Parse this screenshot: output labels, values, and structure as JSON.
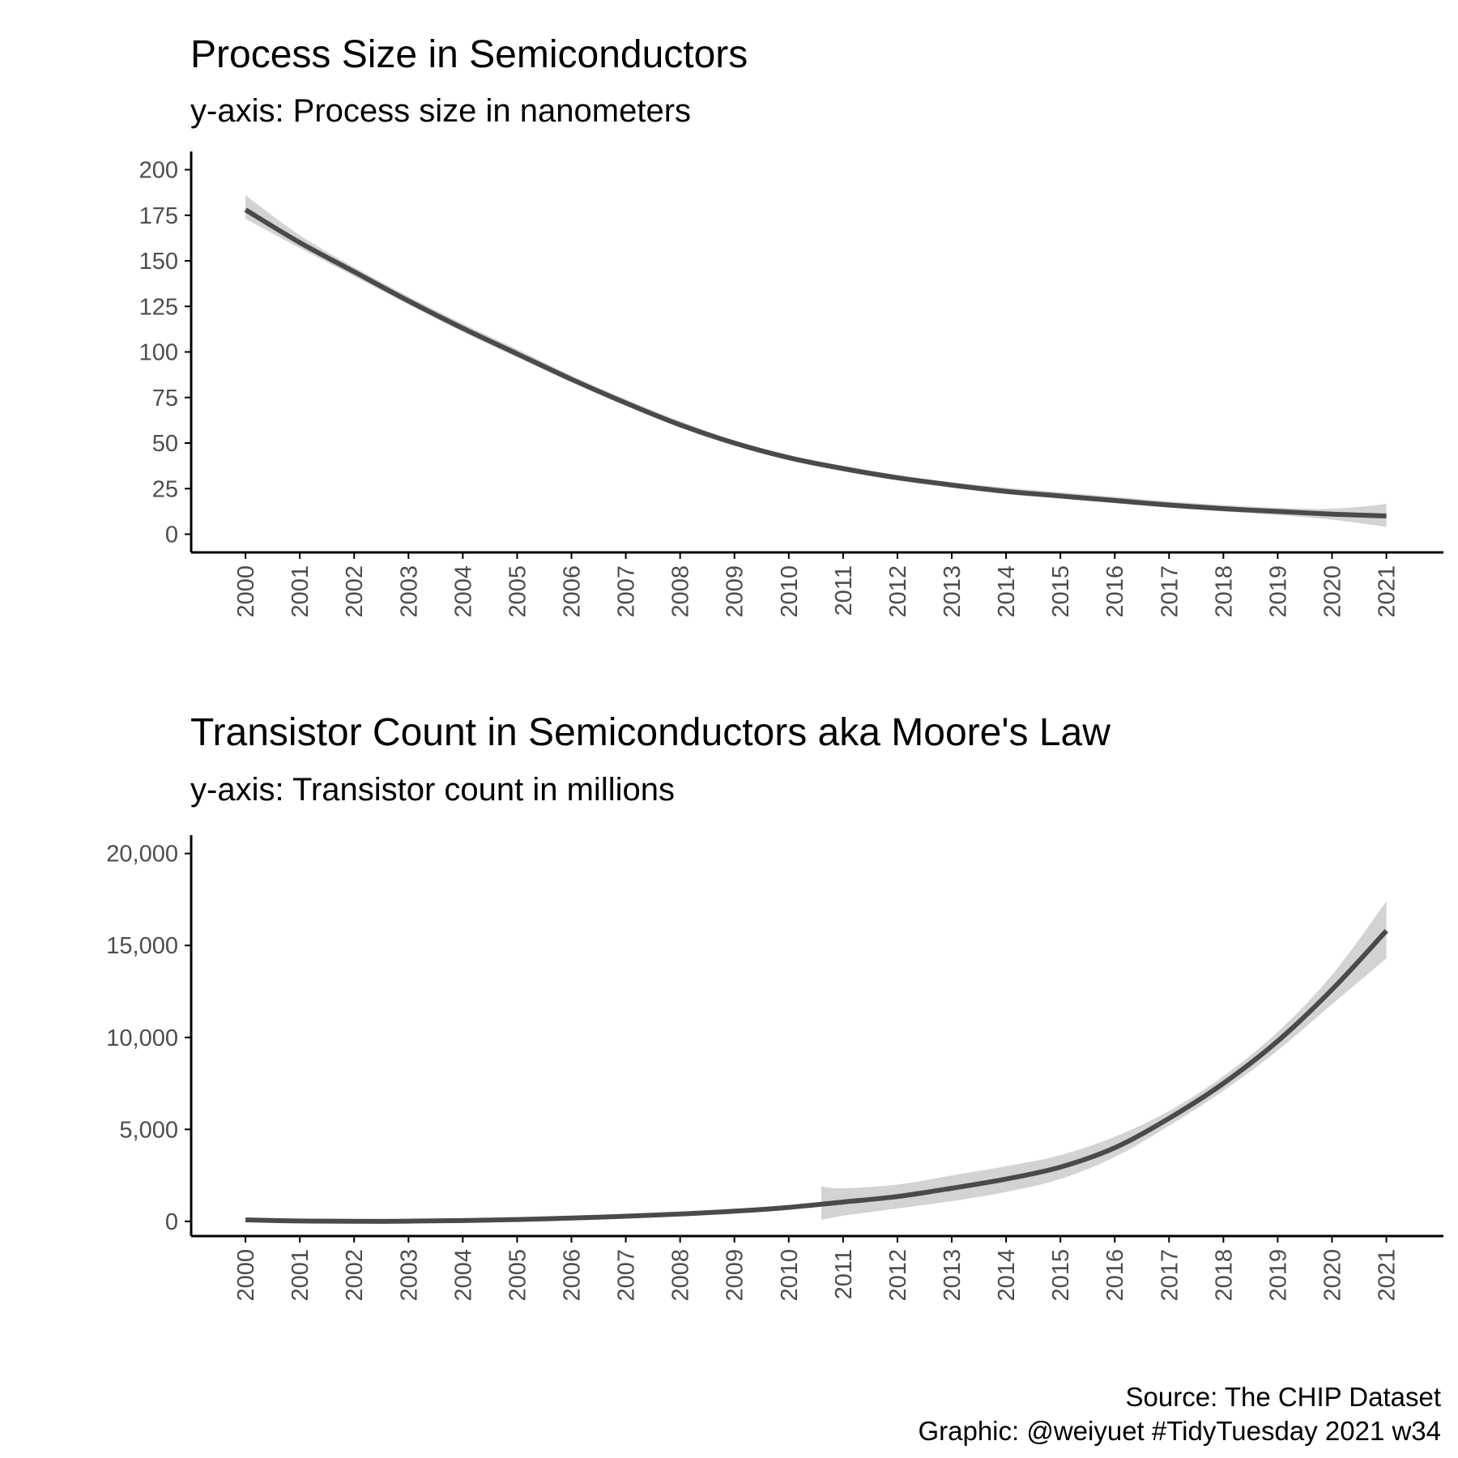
{
  "captions": {
    "source": "Source: The CHIP Dataset",
    "graphic": "Graphic: @weiyuet #TidyTuesday 2021 w34"
  },
  "colors": {
    "line": "#4a4a4a",
    "band": "#d3d3d3",
    "axis": "#000000",
    "tick_label": "#4d4d4d"
  },
  "chart_data": [
    {
      "type": "line",
      "title": "Process Size in Semiconductors",
      "subtitle": "y-axis: Process size in nanometers",
      "xlabel": "",
      "ylabel": "",
      "x": [
        2000,
        2001,
        2002,
        2003,
        2004,
        2005,
        2006,
        2007,
        2008,
        2009,
        2010,
        2011,
        2012,
        2013,
        2014,
        2015,
        2016,
        2017,
        2018,
        2019,
        2020,
        2021
      ],
      "x_tick_labels": [
        "2000",
        "2001",
        "2002",
        "2003",
        "2004",
        "2005",
        "2006",
        "2007",
        "2008",
        "2009",
        "2010",
        "2011",
        "2012",
        "2013",
        "2014",
        "2015",
        "2016",
        "2017",
        "2018",
        "2019",
        "2020",
        "2021"
      ],
      "y_tick_values": [
        0,
        25,
        50,
        75,
        100,
        125,
        150,
        175,
        200
      ],
      "y_tick_labels": [
        "0",
        "25",
        "50",
        "75",
        "100",
        "125",
        "150",
        "175",
        "200"
      ],
      "xlim": [
        1999,
        2022.05
      ],
      "ylim": [
        -10,
        210
      ],
      "grid": false,
      "series": [
        {
          "values": [
            178,
            160,
            144,
            128,
            113,
            99,
            85,
            72,
            60,
            50,
            42,
            36,
            31,
            27,
            23.5,
            21,
            18.5,
            16,
            14,
            12.5,
            11,
            10
          ],
          "band_low": [
            173,
            157,
            141.5,
            126,
            111,
            97,
            83.5,
            70.5,
            59,
            49,
            40.5,
            34.5,
            29.5,
            25.5,
            22,
            19.5,
            17,
            14.5,
            12.5,
            10.5,
            8,
            4
          ],
          "band_high": [
            186,
            164,
            146.5,
            130.5,
            115.5,
            101.5,
            87,
            74,
            62,
            51.5,
            43.5,
            37.5,
            32.5,
            28.5,
            25.5,
            23,
            20.5,
            18,
            16,
            14.5,
            14,
            16.5
          ]
        }
      ]
    },
    {
      "type": "line",
      "title": "Transistor Count in Semiconductors aka Moore's Law",
      "subtitle": "y-axis: Transistor count in millions",
      "xlabel": "",
      "ylabel": "",
      "x": [
        2000,
        2001,
        2002,
        2003,
        2004,
        2005,
        2006,
        2007,
        2008,
        2009,
        2010,
        2011,
        2012,
        2013,
        2014,
        2015,
        2016,
        2017,
        2018,
        2019,
        2020,
        2021
      ],
      "x_tick_labels": [
        "2000",
        "2001",
        "2002",
        "2003",
        "2004",
        "2005",
        "2006",
        "2007",
        "2008",
        "2009",
        "2010",
        "2011",
        "2012",
        "2013",
        "2014",
        "2015",
        "2016",
        "2017",
        "2018",
        "2019",
        "2020",
        "2021"
      ],
      "y_tick_values": [
        0,
        5000,
        10000,
        15000,
        20000
      ],
      "y_tick_labels": [
        "0",
        "5,000",
        "10,000",
        "15,000",
        "20,000"
      ],
      "xlim": [
        1999,
        2022.05
      ],
      "ylim": [
        -800,
        21000
      ],
      "grid": false,
      "series": [
        {
          "values": [
            80,
            20,
            0,
            10,
            40,
            100,
            180,
            280,
            400,
            550,
            760,
            1050,
            1350,
            1800,
            2300,
            2950,
            4000,
            5600,
            7500,
            9800,
            12600,
            15800
          ],
          "band_low": null,
          "band_high": null,
          "band_x": [
            2010.6,
            2011,
            2012,
            2013,
            2014,
            2015,
            2016,
            2017,
            2018,
            2019,
            2020,
            2021
          ],
          "band_x_low": [
            80,
            300,
            700,
            1100,
            1600,
            2300,
            3500,
            5200,
            7100,
            9300,
            11800,
            14300
          ],
          "band_x_high": [
            1900,
            1800,
            2000,
            2500,
            3000,
            3600,
            4600,
            6000,
            7900,
            10300,
            13400,
            17400
          ]
        }
      ]
    }
  ]
}
